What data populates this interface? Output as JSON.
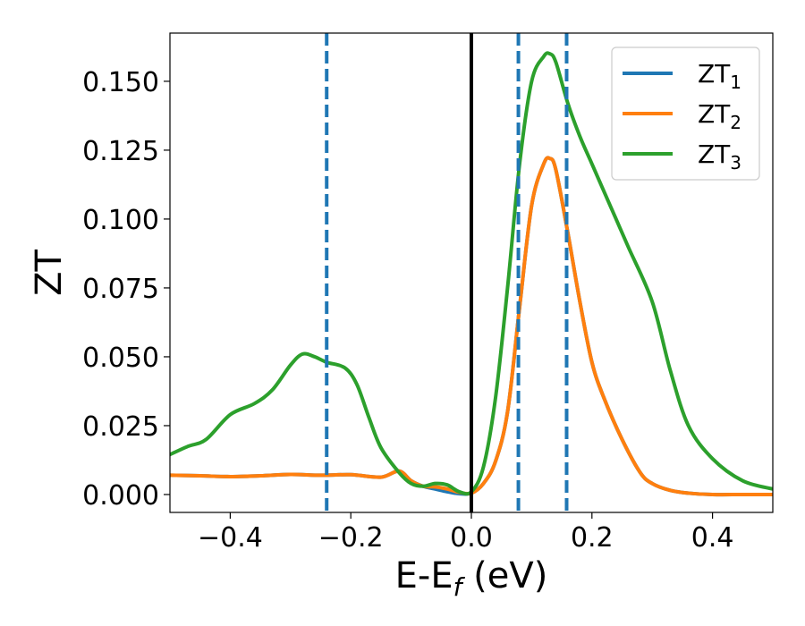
{
  "chart_data": {
    "type": "line",
    "xlabel": "E-E",
    "xlabel_sub": "f",
    "xlabel_suffix": " (eV)",
    "ylabel": "ZT",
    "xlim": [
      -0.5,
      0.5
    ],
    "ylim": [
      -0.0065,
      0.1675
    ],
    "xticks": [
      -0.4,
      -0.2,
      0.0,
      0.2,
      0.4
    ],
    "xtick_labels": [
      "−0.4",
      "−0.2",
      "0.0",
      "0.2",
      "0.4"
    ],
    "yticks": [
      0.0,
      0.025,
      0.05,
      0.075,
      0.1,
      0.125,
      0.15
    ],
    "ytick_labels": [
      "0.000",
      "0.025",
      "0.050",
      "0.075",
      "0.100",
      "0.125",
      "0.150"
    ],
    "grid": false,
    "legend_position": "top-right",
    "series": [
      {
        "name": "ZT",
        "name_sub": "1",
        "color": "#1f77b4",
        "x": [
          -0.5,
          -0.45,
          -0.4,
          -0.35,
          -0.3,
          -0.25,
          -0.2,
          -0.15,
          -0.12,
          -0.1,
          -0.08,
          -0.06,
          -0.04,
          -0.02,
          0.0,
          0.02,
          0.04,
          0.06,
          0.08,
          0.1,
          0.12,
          0.13,
          0.14,
          0.16,
          0.18,
          0.2,
          0.22,
          0.25,
          0.28,
          0.3,
          0.33,
          0.36,
          0.4,
          0.45,
          0.5
        ],
        "y": [
          0.007,
          0.0068,
          0.0065,
          0.0068,
          0.0073,
          0.007,
          0.0072,
          0.0063,
          0.0085,
          0.005,
          0.003,
          0.002,
          0.001,
          0.0003,
          0.0005,
          0.004,
          0.012,
          0.03,
          0.068,
          0.105,
          0.12,
          0.122,
          0.118,
          0.095,
          0.07,
          0.048,
          0.035,
          0.02,
          0.008,
          0.004,
          0.0015,
          0.0005,
          0.0,
          0.0,
          0.0
        ]
      },
      {
        "name": "ZT",
        "name_sub": "2",
        "color": "#ff7f0e",
        "x": [
          -0.5,
          -0.45,
          -0.4,
          -0.35,
          -0.3,
          -0.25,
          -0.2,
          -0.15,
          -0.12,
          -0.1,
          -0.08,
          -0.06,
          -0.04,
          -0.02,
          0.0,
          0.02,
          0.04,
          0.06,
          0.08,
          0.1,
          0.12,
          0.13,
          0.14,
          0.16,
          0.18,
          0.2,
          0.22,
          0.25,
          0.28,
          0.3,
          0.33,
          0.36,
          0.4,
          0.45,
          0.5
        ],
        "y": [
          0.007,
          0.0068,
          0.0065,
          0.0068,
          0.0073,
          0.007,
          0.0072,
          0.0063,
          0.0085,
          0.005,
          0.003,
          0.0028,
          0.002,
          0.0008,
          0.0005,
          0.004,
          0.012,
          0.03,
          0.068,
          0.105,
          0.12,
          0.122,
          0.118,
          0.095,
          0.07,
          0.048,
          0.035,
          0.02,
          0.008,
          0.004,
          0.0015,
          0.0005,
          0.0,
          0.0,
          0.0
        ]
      },
      {
        "name": "ZT",
        "name_sub": "3",
        "color": "#2ca02c",
        "x": [
          -0.5,
          -0.47,
          -0.44,
          -0.4,
          -0.36,
          -0.33,
          -0.3,
          -0.28,
          -0.26,
          -0.24,
          -0.21,
          -0.19,
          -0.17,
          -0.15,
          -0.12,
          -0.1,
          -0.08,
          -0.06,
          -0.04,
          -0.02,
          0.0,
          0.02,
          0.04,
          0.06,
          0.08,
          0.1,
          0.12,
          0.13,
          0.14,
          0.16,
          0.18,
          0.2,
          0.23,
          0.26,
          0.3,
          0.33,
          0.36,
          0.4,
          0.45,
          0.5
        ],
        "y": [
          0.0145,
          0.0175,
          0.02,
          0.029,
          0.033,
          0.038,
          0.047,
          0.051,
          0.05,
          0.048,
          0.046,
          0.04,
          0.028,
          0.017,
          0.008,
          0.004,
          0.003,
          0.004,
          0.0035,
          0.001,
          0.001,
          0.01,
          0.035,
          0.075,
          0.12,
          0.15,
          0.159,
          0.16,
          0.157,
          0.142,
          0.13,
          0.12,
          0.105,
          0.09,
          0.07,
          0.045,
          0.025,
          0.013,
          0.005,
          0.002
        ]
      }
    ],
    "vlines": [
      {
        "x": -0.24,
        "color": "#1f77b4",
        "style": "dashed"
      },
      {
        "x": 0.078,
        "color": "#1f77b4",
        "style": "dashed"
      },
      {
        "x": 0.158,
        "color": "#1f77b4",
        "style": "dashed"
      },
      {
        "x": 0.0,
        "color": "#000000",
        "style": "solid"
      }
    ]
  }
}
